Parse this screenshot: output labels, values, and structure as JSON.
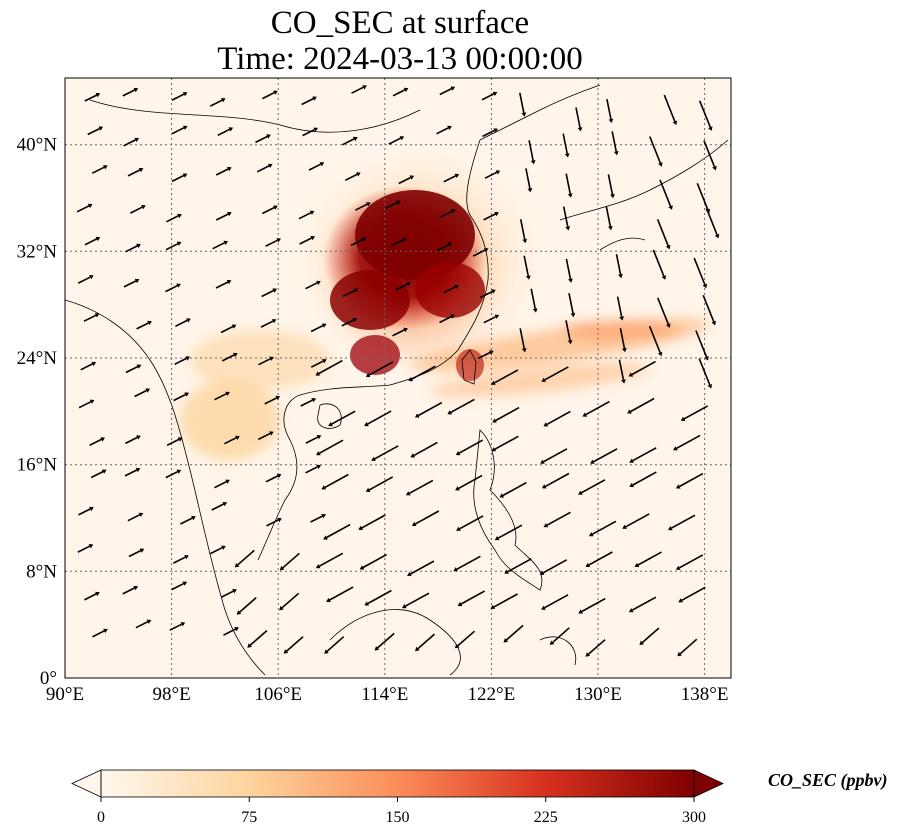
{
  "title": {
    "line1": "CO_SEC at surface",
    "line2": "Time: 2024-03-13 00:00:00"
  },
  "map": {
    "lon_range": [
      90,
      140
    ],
    "lat_range": [
      0,
      45
    ],
    "x_ticks": [
      "90°E",
      "98°E",
      "106°E",
      "114°E",
      "122°E",
      "130°E",
      "138°E"
    ],
    "x_tick_values": [
      90,
      98,
      106,
      114,
      122,
      130,
      138
    ],
    "y_ticks": [
      "0°",
      "8°N",
      "16°N",
      "24°N",
      "32°N",
      "40°N"
    ],
    "y_tick_values": [
      0,
      8,
      16,
      24,
      32,
      40
    ],
    "gridlines": "dotted",
    "field_colormap": "OrRd"
  },
  "colorbar": {
    "label": "CO_SEC (ppbv)",
    "ticks": [
      "0",
      "75",
      "150",
      "225",
      "300"
    ],
    "tick_values": [
      0,
      75,
      150,
      225,
      300
    ],
    "range": [
      0,
      300
    ],
    "extend": "both",
    "colors": [
      "#fff7ec",
      "#fdd49e",
      "#fc8d59",
      "#d7301f",
      "#7f0000"
    ]
  }
}
